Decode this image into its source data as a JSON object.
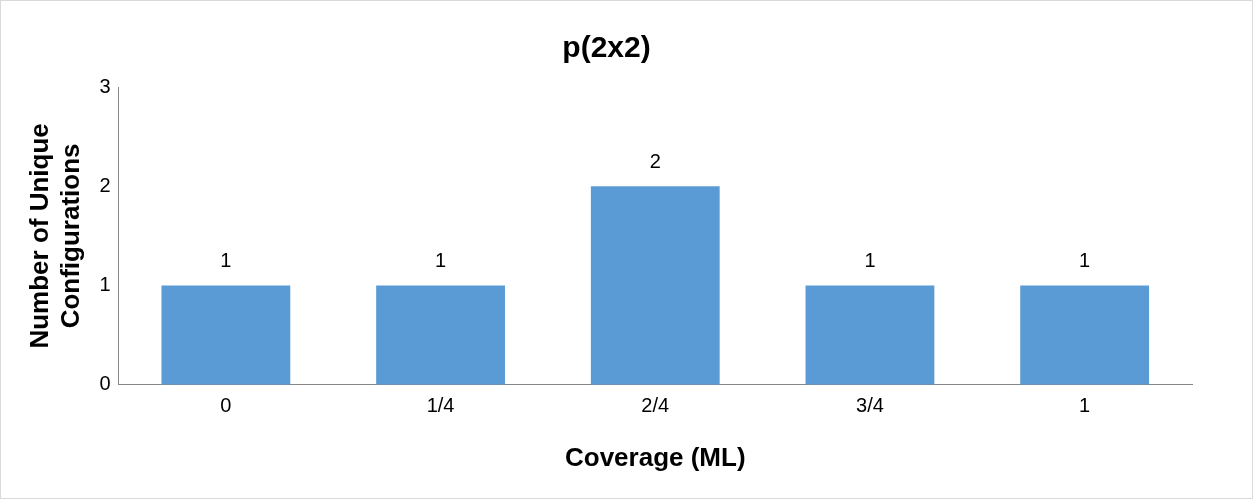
{
  "chart_data": {
    "type": "bar",
    "title": "p(2x2)",
    "xlabel": "Coverage (ML)",
    "ylabel": "Number of Unique Configurations",
    "categories": [
      "0",
      "1/4",
      "2/4",
      "3/4",
      "1"
    ],
    "values": [
      1,
      1,
      2,
      1,
      1
    ],
    "color": "#5b9bd5",
    "ylim": [
      0,
      3
    ],
    "yticks": [
      0,
      1,
      2,
      3
    ],
    "grid": false,
    "legend": false,
    "data_labels": true
  }
}
